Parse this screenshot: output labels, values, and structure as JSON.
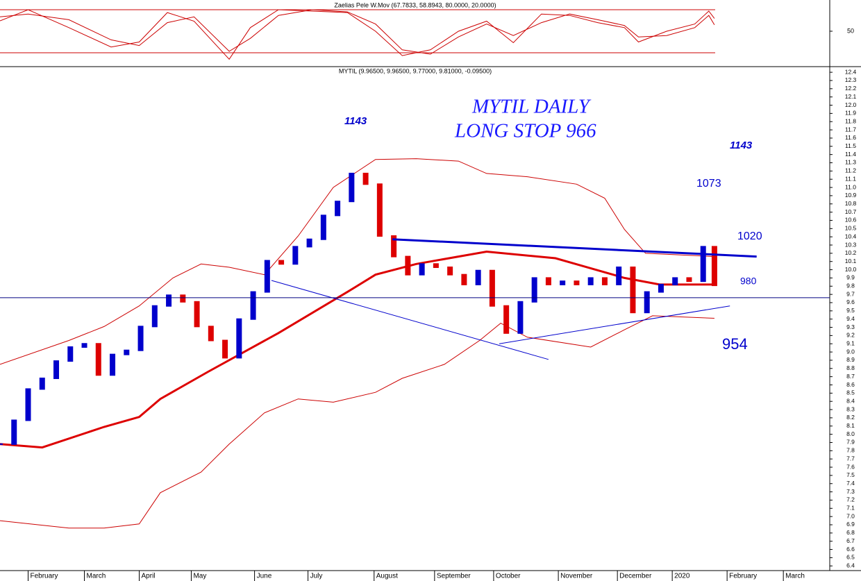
{
  "chart_data": [
    {
      "type": "line",
      "title": "Zaelias  Pele  W.Mov (67.7833, 58.8943, 80.0000, 20.0000)",
      "xlim": [
        0,
        59
      ],
      "ylim": [
        1.6,
        93.5
      ],
      "yticks": [
        50
      ],
      "levels": [
        80,
        20
      ],
      "level_color": "#cc0000",
      "series": [
        {
          "color": "#cc0000",
          "x": [
            0,
            2,
            4.9,
            7.9,
            9.9,
            11.9,
            13.8,
            16.3,
            17.8,
            19.8,
            22.2,
            24.7,
            26.7,
            28.6,
            30.6,
            32.6,
            34.6,
            36.5,
            38.5,
            40.5,
            42.5,
            44.4,
            45.4,
            47.4,
            49.4,
            50.4,
            50.8
          ],
          "values": [
            64.5,
            80,
            55,
            28,
            35,
            76,
            64,
            11,
            55,
            80,
            78,
            76,
            50,
            16,
            24,
            50,
            64,
            34,
            74,
            72,
            62,
            55,
            35,
            50,
            60,
            78,
            67.7833
          ]
        },
        {
          "color": "#cc0000",
          "x": [
            0,
            2,
            4.9,
            7.9,
            9.9,
            11.9,
            13.8,
            16.3,
            17.8,
            19.8,
            22.2,
            24.7,
            26.7,
            28.6,
            30.6,
            32.6,
            34.6,
            36.5,
            38.5,
            40.5,
            42.5,
            44.4,
            45.4,
            47.4,
            49.4,
            50.4,
            50.8
          ],
          "values": [
            70,
            74,
            66,
            38,
            30,
            62,
            70,
            22,
            40,
            72,
            80,
            77,
            60,
            24,
            18,
            42,
            60,
            44,
            62,
            74,
            66,
            58,
            42,
            44,
            55,
            72,
            58.8943
          ]
        }
      ]
    },
    {
      "type": "candle",
      "title": "MYTIL (9.96500, 9.96500, 9.77000, 9.81000, -0.09500)",
      "annotations": [
        "MYTIL DAILY",
        "LONG STOP 966",
        "1143",
        "1143",
        "1073",
        "1020",
        "980",
        "954"
      ],
      "xlim": [
        0,
        59
      ],
      "ylim": [
        6.36,
        12.46
      ],
      "xticks": [
        {
          "value": 2,
          "label": "February"
        },
        {
          "value": 6,
          "label": "March"
        },
        {
          "value": 9.9,
          "label": "April"
        },
        {
          "value": 13.6,
          "label": "May"
        },
        {
          "value": 18.1,
          "label": "June"
        },
        {
          "value": 21.9,
          "label": "July"
        },
        {
          "value": 26.6,
          "label": "August"
        },
        {
          "value": 30.9,
          "label": "September"
        },
        {
          "value": 35.1,
          "label": "October"
        },
        {
          "value": 39.7,
          "label": "November"
        },
        {
          "value": 43.9,
          "label": "December"
        },
        {
          "value": 47.8,
          "label": "2020"
        },
        {
          "value": 51.7,
          "label": "February"
        },
        {
          "value": 55.7,
          "label": "March"
        }
      ],
      "yticks": [
        12.4,
        12.3,
        12.2,
        12.1,
        {
          "value": 12,
          "label": "12.0"
        },
        11.9,
        11.8,
        11.7,
        11.6,
        11.5,
        11.4,
        11.3,
        11.2,
        11.1,
        {
          "value": 11,
          "label": "11.0"
        },
        10.9,
        10.8,
        10.7,
        10.6,
        10.5,
        10.4,
        10.3,
        10.2,
        10.1,
        {
          "value": 10,
          "label": "10.0"
        },
        9.9,
        9.8,
        9.7,
        9.6,
        9.5,
        9.4,
        9.3,
        9.2,
        9.1,
        {
          "value": 9,
          "label": "9.0"
        },
        8.9,
        8.8,
        8.7,
        8.6,
        8.5,
        8.4,
        8.3,
        8.2,
        8.1,
        {
          "value": 8,
          "label": "8.0"
        },
        7.9,
        7.8,
        7.7,
        7.6,
        7.5,
        7.4,
        7.3,
        7.2,
        7.1,
        {
          "value": 7,
          "label": "7.0"
        },
        6.9,
        6.8,
        6.7,
        6.6,
        6.5,
        6.4
      ],
      "up_color": "#0000cc",
      "down_color": "#dd0000",
      "x": [
        0,
        1,
        2,
        3,
        4,
        5,
        6,
        7,
        8,
        9,
        10,
        11,
        12,
        13,
        14,
        15,
        16,
        17,
        18,
        19,
        20,
        21,
        22,
        23,
        24,
        25,
        26,
        27,
        28,
        29,
        30,
        31,
        32,
        33,
        34,
        35,
        36,
        37,
        38,
        39,
        40,
        41,
        42,
        43,
        44,
        45,
        46,
        47,
        48,
        49,
        50,
        50.8
      ],
      "values": [
        7.88,
        8.17,
        8.55,
        8.68,
        8.89,
        9.06,
        9.1,
        8.72,
        8.97,
        9.02,
        9.31,
        9.56,
        9.69,
        9.61,
        9.31,
        9.14,
        8.93,
        9.4,
        9.73,
        10.11,
        10.07,
        10.28,
        10.37,
        10.66,
        10.83,
        11.17,
        11.04,
        10.41,
        10.16,
        9.94,
        10.07,
        10.03,
        9.94,
        9.82,
        9.99,
        9.56,
        9.23,
        9.61,
        9.9,
        9.82,
        9.86,
        9.82,
        9.9,
        9.82,
        10.03,
        9.48,
        9.73,
        9.82,
        9.9,
        9.86,
        10.28,
        9.81
      ],
      "overlays": [
        {
          "color": "#dd0000",
          "width": 3,
          "x": [
            0,
            3,
            7.4,
            9.9,
            11.4,
            14.8,
            19.8,
            24.7,
            26.7,
            29.6,
            34.6,
            39.5,
            44.4,
            46.9,
            50.8
          ],
          "values": [
            7.88,
            7.84,
            8.09,
            8.21,
            8.43,
            8.76,
            9.23,
            9.73,
            9.94,
            10.07,
            10.22,
            10.14,
            9.9,
            9.82,
            9.82
          ]
        },
        {
          "color": "#cc0000",
          "width": 1,
          "x": [
            0,
            4.9,
            7.4,
            9.9,
            12.3,
            14.3,
            16.3,
            18.8,
            21.2,
            23.7,
            26.7,
            29.6,
            32.6,
            34.6,
            37.5,
            41,
            43,
            44.4,
            45.9,
            50.8
          ],
          "values": [
            8.85,
            9.14,
            9.31,
            9.56,
            9.9,
            10.07,
            10.03,
            9.94,
            10.41,
            11,
            11.34,
            11.35,
            11.32,
            11.17,
            11.13,
            11.04,
            10.87,
            10.49,
            10.2,
            10.16
          ]
        },
        {
          "color": "#cc0000",
          "width": 1,
          "x": [
            0,
            4.9,
            7.4,
            9.9,
            11.4,
            14.3,
            16.3,
            18.8,
            21.2,
            23.7,
            26.7,
            28.6,
            31.6,
            34.1,
            35.6,
            37.5,
            42,
            44.4,
            46.4,
            50.8
          ],
          "values": [
            6.95,
            6.86,
            6.86,
            6.91,
            7.29,
            7.54,
            7.88,
            8.26,
            8.43,
            8.39,
            8.51,
            8.68,
            8.85,
            9.14,
            9.35,
            9.18,
            9.06,
            9.27,
            9.44,
            9.41
          ]
        }
      ],
      "trendlines": [
        {
          "color": "#0000cc",
          "width": 3,
          "x": [
            27.9,
            53.8
          ],
          "values": [
            10.37,
            10.16
          ]
        },
        {
          "color": "#0000cc",
          "width": 1,
          "x": [
            19.3,
            39
          ],
          "values": [
            9.87,
            8.91
          ]
        },
        {
          "color": "#0000cc",
          "width": 1,
          "x": [
            35.5,
            51.9
          ],
          "values": [
            9.1,
            9.56
          ]
        },
        {
          "color": "#000080",
          "width": 1,
          "x": [
            0,
            59
          ],
          "values": [
            9.66,
            9.66
          ]
        }
      ]
    }
  ]
}
